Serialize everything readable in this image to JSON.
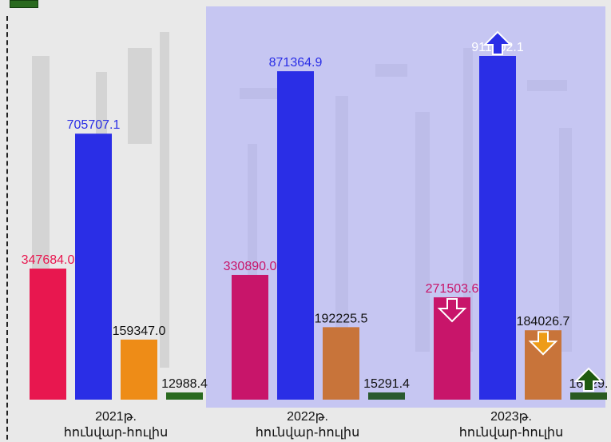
{
  "chart_data": {
    "type": "bar",
    "title": "",
    "xlabel": "",
    "ylabel": "",
    "categories": [
      {
        "year": "2021թ.",
        "period": "հունվար-հուլիս"
      },
      {
        "year": "2022թ.",
        "period": "հունվար-հուլիս"
      },
      {
        "year": "2023թ.",
        "period": "հունվար-հուլիս"
      }
    ],
    "series": [
      {
        "values": [
          347684.0,
          330890.0,
          271503.6
        ],
        "labels": [
          "347684.0",
          "330890.0",
          "271503.6"
        ],
        "colors": [
          "#e8174f",
          "#c8156a",
          "#c8156a"
        ],
        "label_colors": [
          "#e8174f",
          "#c8156a",
          "#c8156a"
        ]
      },
      {
        "values": [
          705707.1,
          871364.9,
          911902.1
        ],
        "labels": [
          "705707.1",
          "871364.9",
          "911902.1"
        ],
        "colors": [
          "#2a2ee6",
          "#2a2ee6",
          "#2a2ee6"
        ],
        "label_colors": [
          "#2a2ee6",
          "#2a2ee6",
          "#ffffff"
        ]
      },
      {
        "values": [
          159347.0,
          192225.5,
          184026.7
        ],
        "labels": [
          "159347.0",
          "192225.5",
          "184026.7"
        ],
        "colors": [
          "#ee8c17",
          "#c8743a",
          "#c8743a"
        ],
        "label_colors": [
          "#111111",
          "#111111",
          "#111111"
        ]
      },
      {
        "values": [
          12988.4,
          15291.4,
          16829.0
        ],
        "labels": [
          "12988.4",
          "15291.4",
          "16829."
        ],
        "colors": [
          "#2a6a1f",
          "#2a5a2f",
          "#2a5a1f"
        ],
        "label_colors": [
          "#111111",
          "#111111",
          "#111111"
        ]
      }
    ],
    "trend_markers": [
      {
        "group": 2,
        "series": 0,
        "direction": "down",
        "color": "#c8156a"
      },
      {
        "group": 2,
        "series": 1,
        "direction": "up",
        "color": "#2a2ee6"
      },
      {
        "group": 2,
        "series": 2,
        "direction": "down",
        "color": "#ee9c17"
      },
      {
        "group": 2,
        "series": 3,
        "direction": "up",
        "color": "#1f5a10"
      }
    ],
    "ylim": [
      0,
      1000000
    ],
    "grid": false,
    "highlight_groups": [
      1,
      2
    ]
  }
}
